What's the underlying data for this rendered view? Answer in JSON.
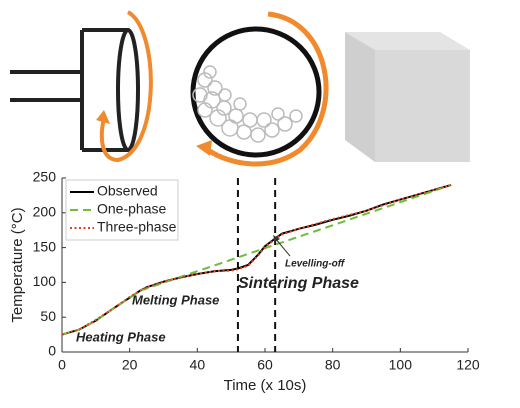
{
  "chart_data": {
    "type": "line",
    "x": [
      0,
      5,
      10,
      15,
      20,
      23,
      25,
      30,
      35,
      40,
      45,
      50,
      52,
      55,
      58,
      60,
      63,
      65,
      70,
      75,
      80,
      85,
      90,
      95,
      100,
      105,
      110,
      115
    ],
    "series": [
      {
        "name": "Observed",
        "color": "#000000",
        "dash": "solid",
        "values": [
          25,
          32,
          45,
          62,
          78,
          88,
          93,
          101,
          107,
          112,
          116,
          118,
          120,
          125,
          140,
          152,
          163,
          170,
          177,
          183,
          190,
          196,
          203,
          212,
          219,
          226,
          233,
          240
        ]
      },
      {
        "name": "One-phase",
        "color": "#6bbf3a",
        "dash": "dashed",
        "values": [
          25,
          32,
          45,
          62,
          78,
          88,
          91.3,
          99.6,
          107.8,
          116.1,
          124.3,
          132.6,
          135.9,
          140.9,
          145.8,
          149.1,
          154.1,
          157.4,
          165.6,
          173.9,
          182.1,
          190.4,
          198.7,
          206.9,
          215.2,
          223.5,
          231.7,
          240
        ]
      },
      {
        "name": "Three-phase",
        "color": "#e0431c",
        "dash": "dotted",
        "values": [
          25,
          32,
          46,
          62,
          79,
          88,
          93,
          101,
          107,
          112,
          116,
          117,
          119,
          124,
          139,
          151,
          162,
          169,
          177,
          184,
          191,
          197,
          203,
          211,
          219,
          226,
          233,
          240
        ]
      }
    ],
    "vlines": [
      52,
      63
    ],
    "xlim": [
      0,
      120
    ],
    "xticks": [
      0,
      20,
      40,
      60,
      80,
      100,
      120
    ],
    "ylim": [
      0,
      250
    ],
    "yticks": [
      0,
      50,
      100,
      150,
      200,
      250
    ],
    "xlabel": "Time (x 10s)",
    "ylabel": "Temperature (°C)",
    "legend": "upper left",
    "annotations": [
      "Heating Phase",
      "Melting Phase",
      "Sintering Phase",
      "Levelling-off"
    ]
  }
}
